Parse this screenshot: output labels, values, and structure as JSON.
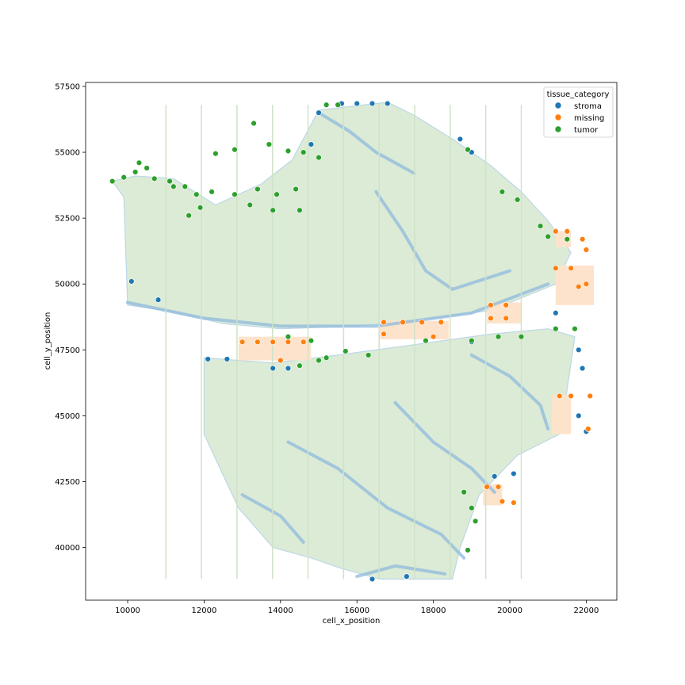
{
  "chart_data": {
    "type": "scatter",
    "title": "",
    "xlabel": "cell_x_position",
    "ylabel": "cell_y_position",
    "xlim": [
      8900,
      22800
    ],
    "ylim": [
      38000,
      57650
    ],
    "xticks": [
      10000,
      12000,
      14000,
      16000,
      18000,
      20000,
      22000
    ],
    "yticks": [
      40000,
      42500,
      45000,
      47500,
      50000,
      52500,
      55000,
      57500
    ],
    "grid": false,
    "legend": {
      "title": "tissue_category",
      "placement": "top-right",
      "entries": [
        "stroma",
        "missing",
        "tumor"
      ]
    },
    "colors": {
      "stroma": "#1f77b4",
      "missing": "#ff7f0e",
      "tumor": "#2ca02c"
    },
    "series": [
      {
        "name": "stroma",
        "points": [
          [
            15600,
            56850
          ],
          [
            16000,
            56850
          ],
          [
            16400,
            56850
          ],
          [
            16800,
            56850
          ],
          [
            15000,
            56500
          ],
          [
            14800,
            55300
          ],
          [
            18700,
            55500
          ],
          [
            19000,
            55000
          ],
          [
            10100,
            50100
          ],
          [
            10800,
            49400
          ],
          [
            13800,
            46800
          ],
          [
            14200,
            46800
          ],
          [
            12100,
            47150
          ],
          [
            12600,
            47150
          ],
          [
            19000,
            47800
          ],
          [
            21200,
            48900
          ],
          [
            21800,
            47500
          ],
          [
            21900,
            46800
          ],
          [
            21800,
            45000
          ],
          [
            22000,
            44400
          ],
          [
            19600,
            42700
          ],
          [
            20100,
            42800
          ],
          [
            17300,
            38900
          ],
          [
            16400,
            38800
          ]
        ]
      },
      {
        "name": "missing",
        "points": [
          [
            13000,
            47800
          ],
          [
            13400,
            47800
          ],
          [
            13800,
            47800
          ],
          [
            14200,
            47800
          ],
          [
            14600,
            47800
          ],
          [
            16700,
            48550
          ],
          [
            17200,
            48550
          ],
          [
            17700,
            48550
          ],
          [
            18200,
            48550
          ],
          [
            16700,
            48100
          ],
          [
            19500,
            49200
          ],
          [
            19900,
            49200
          ],
          [
            19500,
            48700
          ],
          [
            19900,
            48700
          ],
          [
            21200,
            52000
          ],
          [
            21500,
            52000
          ],
          [
            21900,
            51700
          ],
          [
            22000,
            51300
          ],
          [
            21200,
            50600
          ],
          [
            21600,
            50600
          ],
          [
            22000,
            50000
          ],
          [
            21800,
            49900
          ],
          [
            21300,
            45750
          ],
          [
            21600,
            45750
          ],
          [
            22100,
            45750
          ],
          [
            22050,
            44500
          ],
          [
            19400,
            42300
          ],
          [
            19700,
            42300
          ],
          [
            19800,
            41750
          ],
          [
            20100,
            41700
          ],
          [
            14000,
            47100
          ],
          [
            18000,
            48000
          ]
        ]
      },
      {
        "name": "tumor",
        "points": [
          [
            9600,
            53900
          ],
          [
            9900,
            54050
          ],
          [
            10300,
            54600
          ],
          [
            10700,
            54000
          ],
          [
            11100,
            53900
          ],
          [
            11500,
            53700
          ],
          [
            11800,
            53400
          ],
          [
            12200,
            53500
          ],
          [
            12300,
            54950
          ],
          [
            12800,
            55100
          ],
          [
            13300,
            56100
          ],
          [
            13700,
            55300
          ],
          [
            14200,
            55050
          ],
          [
            14600,
            55000
          ],
          [
            13400,
            53600
          ],
          [
            13900,
            53400
          ],
          [
            14400,
            53600
          ],
          [
            12800,
            53400
          ],
          [
            13200,
            53000
          ],
          [
            13800,
            52800
          ],
          [
            14500,
            52800
          ],
          [
            15000,
            54800
          ],
          [
            15200,
            56800
          ],
          [
            15500,
            56800
          ],
          [
            18900,
            55100
          ],
          [
            19800,
            53500
          ],
          [
            20200,
            53200
          ],
          [
            20800,
            52200
          ],
          [
            21000,
            51800
          ],
          [
            21500,
            51700
          ],
          [
            15700,
            47450
          ],
          [
            16300,
            47300
          ],
          [
            15200,
            47200
          ],
          [
            15000,
            47100
          ],
          [
            14500,
            46900
          ],
          [
            14200,
            48000
          ],
          [
            14800,
            47850
          ],
          [
            17800,
            47850
          ],
          [
            19000,
            47850
          ],
          [
            19700,
            48000
          ],
          [
            20300,
            48000
          ],
          [
            21200,
            48300
          ],
          [
            21700,
            48300
          ],
          [
            18900,
            39900
          ],
          [
            19000,
            41500
          ],
          [
            19100,
            41000
          ],
          [
            18800,
            42100
          ],
          [
            11900,
            52900
          ],
          [
            11600,
            52600
          ],
          [
            10200,
            54250
          ],
          [
            10500,
            54400
          ],
          [
            11200,
            53700
          ]
        ]
      }
    ]
  }
}
